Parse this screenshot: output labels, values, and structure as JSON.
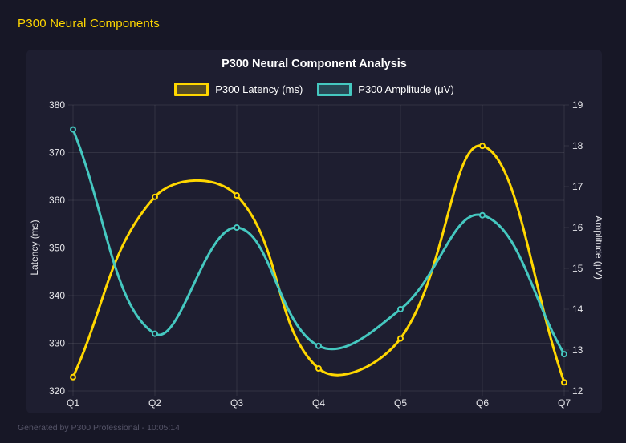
{
  "header": {
    "title": "P300 Neural Components"
  },
  "footer": {
    "text": "Generated by P300 Professional - 10:05:14"
  },
  "chart_data": {
    "type": "line",
    "title": "P300 Neural Component Analysis",
    "categories": [
      "Q1",
      "Q2",
      "Q3",
      "Q4",
      "Q5",
      "Q6",
      "Q7"
    ],
    "series": [
      {
        "name": "P300 Latency (ms)",
        "yaxis": "left",
        "color": "#FFD700",
        "values": [
          322.9,
          360.7,
          361.0,
          324.7,
          331.0,
          371.4,
          321.8
        ]
      },
      {
        "name": "P300 Amplitude (μV)",
        "yaxis": "right",
        "color": "#45C8C0",
        "values": [
          18.4,
          13.4,
          16.0,
          13.1,
          14.0,
          16.3,
          12.9
        ]
      }
    ],
    "axes": {
      "left": {
        "label": "Latency (ms)",
        "min": 320,
        "max": 380,
        "ticks": [
          320,
          330,
          340,
          350,
          360,
          370,
          380
        ]
      },
      "right": {
        "label": "Amplitude (μV)",
        "min": 12,
        "max": 19,
        "ticks": [
          12,
          13,
          14,
          15,
          16,
          17,
          18,
          19
        ]
      }
    },
    "grid": true,
    "legend_position": "top",
    "curve": "spline",
    "tension": 0.4
  },
  "theme": {
    "page_bg": "#171726",
    "panel_bg": "#1E1E30",
    "grid_color": "rgba(255,255,255,0.09)",
    "tick_color": "#E6E6EA",
    "axis_title_color": "#E6E6EA",
    "title_color": "#FFFFFF",
    "accent_yellow": "#FFD700",
    "accent_teal": "#45C8C0",
    "footer_color": "#565569",
    "legend_fill_alpha": 0.25
  }
}
